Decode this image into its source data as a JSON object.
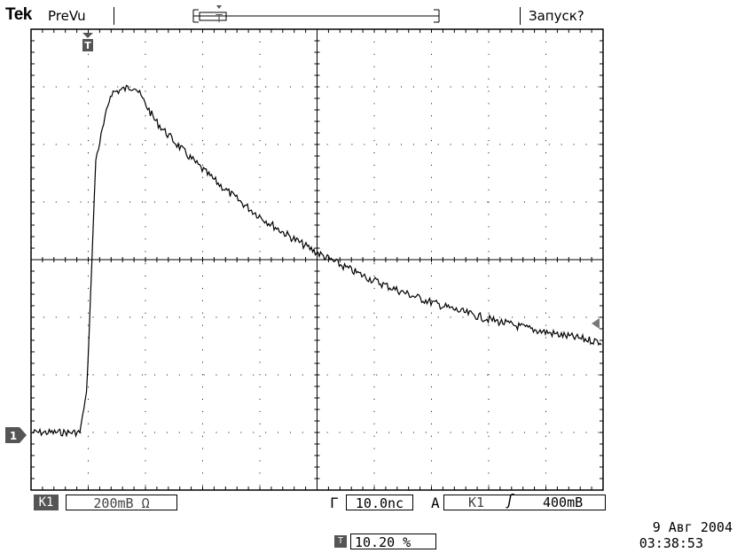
{
  "header": {
    "brand": "Tek",
    "mode": "PreVu",
    "trigger_status": "Запуск?"
  },
  "channel": {
    "badge": "K1",
    "volts_per_div": "200mВ Ω",
    "marker_label": "1"
  },
  "timebase": {
    "label": "Г",
    "value": "10.0nс"
  },
  "trigger": {
    "label": "A",
    "source": "K1",
    "edge_symbol": "ʃ",
    "level": "400mВ",
    "position": "10.20 %"
  },
  "datetime": {
    "date": "9 Авг  2004",
    "time": "03:38:53"
  },
  "colors": {
    "grid": "#000000",
    "trace": "#000000",
    "badge": "#555555"
  }
}
